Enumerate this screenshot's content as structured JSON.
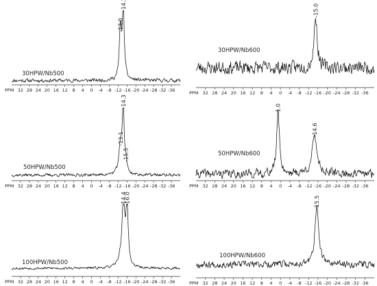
{
  "chart_data": [
    {
      "type": "line",
      "panel": "top-left",
      "sample_label": "30HPW/Nb500",
      "axis_unit_label": "PPM",
      "tick_labels": [
        "32",
        "28",
        "24",
        "20",
        "16",
        "12",
        "8",
        "4",
        "0",
        "-4",
        "-8",
        "-12",
        "-16",
        "-20",
        "-24",
        "-28",
        "-32",
        "-36"
      ],
      "xlim": [
        36,
        -40
      ],
      "ylim": [
        0,
        1
      ],
      "noise": 0.035,
      "baseline_seed": 11,
      "peaks": [
        {
          "ppm": -13.0,
          "height": 0.7,
          "width": 0.55
        },
        {
          "ppm": -14.3,
          "height": 0.98,
          "width": 0.55
        }
      ],
      "peak_labels": [
        {
          "text": "-13.0",
          "ppm": -13.0,
          "y": 0.7
        },
        {
          "text": "-14.3",
          "ppm": -14.3,
          "y": 0.98
        }
      ]
    },
    {
      "type": "line",
      "panel": "top-right",
      "sample_label": "30HPW/Nb600",
      "axis_unit_label": "PPM",
      "tick_labels": [
        "32",
        "28",
        "24",
        "20",
        "16",
        "12",
        "8",
        "4",
        "0",
        "-4",
        "-8",
        "-12",
        "-16",
        "-20",
        "-24",
        "-28",
        "-32",
        "-36"
      ],
      "xlim": [
        36,
        -40
      ],
      "ylim": [
        0,
        1
      ],
      "noise": 0.16,
      "baseline_seed": 23,
      "peaks": [
        {
          "ppm": -15.0,
          "height": 0.92,
          "width": 0.8
        }
      ],
      "peak_labels": [
        {
          "text": "-15.0",
          "ppm": -15.0,
          "y": 0.92
        }
      ]
    },
    {
      "type": "line",
      "panel": "middle-left",
      "sample_label": "50HPW/Nb500",
      "axis_unit_label": "PPM",
      "tick_labels": [
        "32",
        "28",
        "24",
        "20",
        "16",
        "12",
        "8",
        "4",
        "0",
        "-4",
        "-8",
        "-12",
        "-16",
        "-20",
        "-24",
        "-28",
        "-32",
        "-36"
      ],
      "xlim": [
        36,
        -40
      ],
      "ylim": [
        0,
        1
      ],
      "noise": 0.03,
      "baseline_seed": 37,
      "peaks": [
        {
          "ppm": -13.1,
          "height": 0.42,
          "width": 0.9
        },
        {
          "ppm": -14.3,
          "height": 0.97,
          "width": 0.45
        },
        {
          "ppm": -15.5,
          "height": 0.17,
          "width": 0.5
        }
      ],
      "peak_labels": [
        {
          "text": "-13.1",
          "ppm": -13.1,
          "y": 0.45
        },
        {
          "text": "-14.3",
          "ppm": -14.3,
          "y": 0.98
        },
        {
          "text": "-15.5",
          "ppm": -15.5,
          "y": 0.22
        }
      ]
    },
    {
      "type": "line",
      "panel": "middle-right",
      "sample_label": "50HPW/Nb600",
      "axis_unit_label": "PPM",
      "tick_labels": [
        "32",
        "28",
        "24",
        "20",
        "16",
        "12",
        "8",
        "4",
        "0",
        "-4",
        "-8",
        "-12",
        "-16",
        "-20",
        "-24",
        "-28",
        "-32",
        "-36"
      ],
      "xlim": [
        36,
        -40
      ],
      "ylim": [
        0,
        1
      ],
      "noise": 0.09,
      "baseline_seed": 41,
      "peaks": [
        {
          "ppm": 1.0,
          "height": 0.95,
          "width": 0.7
        },
        {
          "ppm": -14.6,
          "height": 0.55,
          "width": 1.3
        }
      ],
      "peak_labels": [
        {
          "text": "1.0",
          "ppm": 1.0,
          "y": 0.95
        },
        {
          "text": "-14.6",
          "ppm": -14.6,
          "y": 0.58
        }
      ]
    },
    {
      "type": "line",
      "panel": "bottom-left",
      "sample_label": "100HPW/Nb500",
      "axis_unit_label": "PPM",
      "tick_labels": [
        "32",
        "28",
        "24",
        "20",
        "16",
        "12",
        "8",
        "4",
        "0",
        "-4",
        "-8",
        "-12",
        "-16",
        "-20",
        "-24",
        "-28",
        "-32",
        "-36"
      ],
      "xlim": [
        36,
        -40
      ],
      "ylim": [
        0,
        1
      ],
      "noise": 0.025,
      "baseline_seed": 53,
      "peaks": [
        {
          "ppm": -14.4,
          "height": 0.95,
          "width": 0.6
        },
        {
          "ppm": -16.0,
          "height": 0.93,
          "width": 0.6
        },
        {
          "ppm": -13.5,
          "height": 0.18,
          "width": 1.4
        }
      ],
      "peak_labels": [
        {
          "text": "-14.4",
          "ppm": -14.4,
          "y": 0.96
        },
        {
          "text": "-16.0",
          "ppm": -16.0,
          "y": 0.96
        }
      ]
    },
    {
      "type": "line",
      "panel": "bottom-right",
      "sample_label": "100HPW/Nb600",
      "axis_unit_label": "PPM",
      "tick_labels": [
        "32",
        "28",
        "24",
        "20",
        "16",
        "12",
        "8",
        "4",
        "0",
        "-4",
        "-8",
        "-12",
        "-16",
        "-20",
        "-24",
        "-28",
        "-32",
        "-36"
      ],
      "xlim": [
        36,
        -40
      ],
      "ylim": [
        0,
        1
      ],
      "noise": 0.075,
      "baseline_seed": 67,
      "peaks": [
        {
          "ppm": -15.5,
          "height": 0.9,
          "width": 1.0
        }
      ],
      "peak_labels": [
        {
          "text": "-15.5",
          "ppm": -15.5,
          "y": 0.9
        }
      ]
    }
  ]
}
